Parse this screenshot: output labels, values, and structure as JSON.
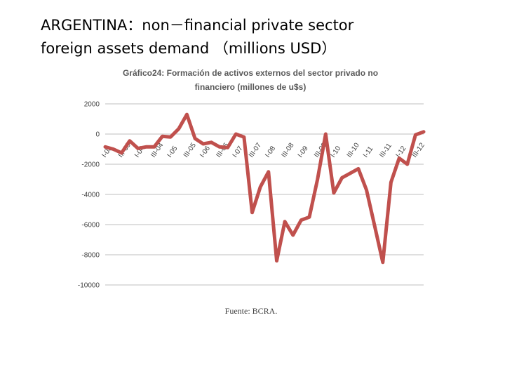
{
  "slide": {
    "title_line1": "ARGENTINA：non－financial private sector",
    "title_line2": "foreign assets demand （millions USD）"
  },
  "chart_data": {
    "type": "line",
    "title_line1": "Gráfico24: Formación  de activos externos del sector privado no",
    "title_line2": "financiero (millones de u$s)",
    "source": "Fuente: BCRA.",
    "ylim": [
      -10000,
      2000
    ],
    "yticks": [
      2000,
      0,
      -2000,
      -4000,
      -6000,
      -8000,
      -10000
    ],
    "grid": true,
    "series_color": "#c0504d",
    "x_labels": [
      "I-03",
      "III-03",
      "I-04",
      "III-04",
      "I-05",
      "III-05",
      "I-06",
      "III-06",
      "I-07",
      "III-07",
      "I-08",
      "III-08",
      "I-09",
      "III-09",
      "I-10",
      "III-10",
      "I-11",
      "III-11",
      "I-12",
      "III-12"
    ],
    "series": [
      {
        "name": "Formación de activos externos",
        "values": [
          -850,
          -1000,
          -1250,
          -450,
          -950,
          -850,
          -850,
          -150,
          -200,
          350,
          1300,
          -300,
          -650,
          -550,
          -850,
          -900,
          0,
          -200,
          -5200,
          -3500,
          -2500,
          -8400,
          -5800,
          -6700,
          -5700,
          -5500,
          -3000,
          0,
          -3900,
          -2900,
          -2600,
          -2300,
          -3700,
          -6100,
          -8500,
          -3200,
          -1600,
          -2000,
          -50,
          150
        ]
      }
    ]
  }
}
